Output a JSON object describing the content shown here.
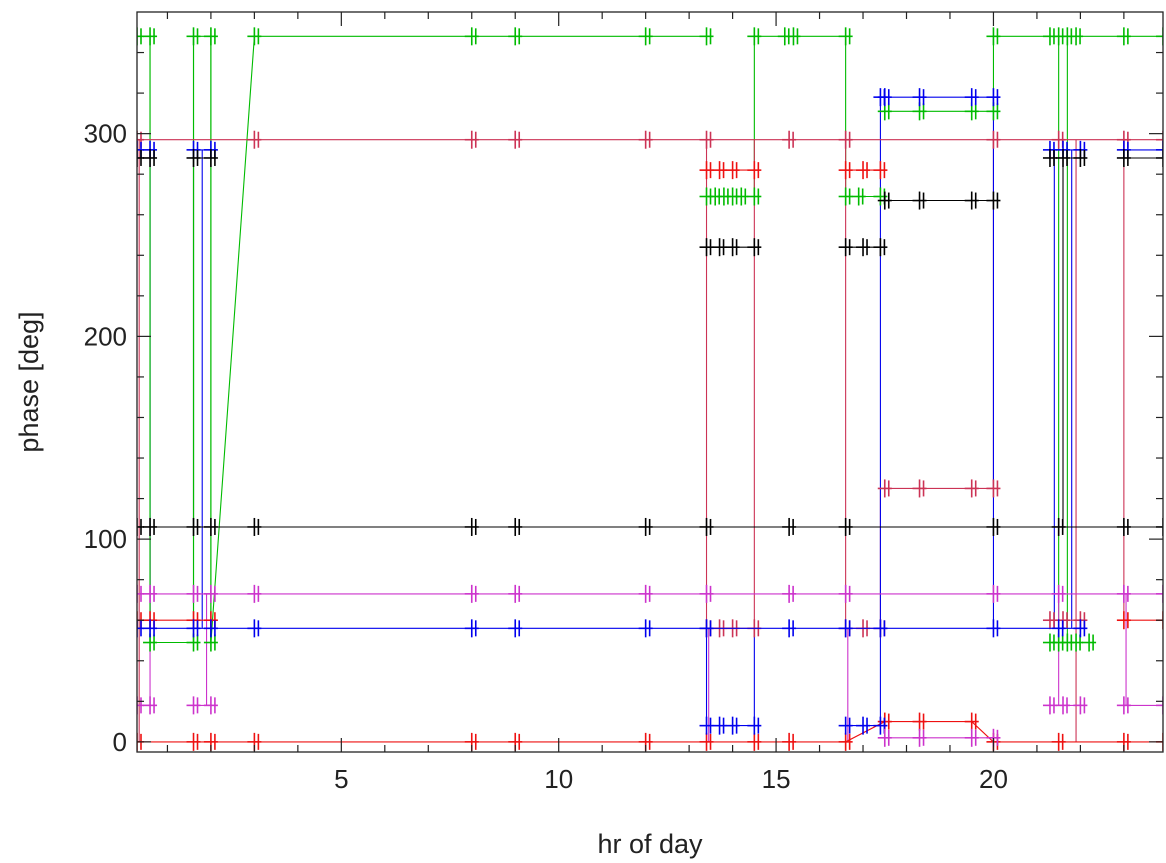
{
  "chart_data": {
    "type": "line",
    "title": "",
    "xlabel": "hr of day",
    "ylabel": "phase [deg]",
    "xlim": [
      0.3,
      23.9
    ],
    "ylim": [
      -5,
      360
    ],
    "xticks": [
      5,
      10,
      15,
      20
    ],
    "yticks": [
      0,
      100,
      200,
      300
    ],
    "xtick_labels": [
      "5",
      "10",
      "15",
      "20"
    ],
    "ytick_labels": [
      "0",
      "100",
      "200",
      "300"
    ],
    "grid": false,
    "legend": "none",
    "series": [
      {
        "color": "#00bb00",
        "segments": [
          {
            "x": [
              0.3,
              0.6,
              0.6,
              1.6,
              1.6,
              2.0,
              2.0,
              3.0,
              8.0,
              9.0,
              12.0,
              13.4
            ],
            "y": [
              348,
              348,
              49,
              49,
              348,
              348,
              49,
              348,
              348,
              348,
              348,
              348
            ]
          },
          {
            "x": [
              13.4,
              13.6,
              13.8,
              14.0,
              14.2,
              14.5
            ],
            "y": [
              269,
              269,
              269,
              269,
              269,
              269
            ]
          },
          {
            "x": [
              14.5,
              15.2,
              15.4,
              16.6
            ],
            "y": [
              348,
              348,
              348,
              348
            ]
          },
          {
            "x": [
              16.6,
              16.9,
              17.4
            ],
            "y": [
              269,
              269,
              269
            ]
          },
          {
            "x": [
              17.5,
              18.3,
              19.5,
              20.0
            ],
            "y": [
              311,
              311,
              311,
              311
            ]
          },
          {
            "x": [
              20.0,
              21.3,
              21.5,
              21.7,
              21.9,
              23.0,
              23.9
            ],
            "y": [
              348,
              348,
              348,
              348,
              348,
              348,
              348
            ]
          },
          {
            "x": [
              21.3,
              21.5,
              21.7,
              21.9,
              22.2
            ],
            "y": [
              49,
              49,
              49,
              49,
              49
            ]
          }
        ]
      },
      {
        "color": "#cc3355",
        "segments": [
          {
            "x": [
              0.3,
              3.0,
              8.0,
              9.0,
              12.0,
              13.4,
              15.3,
              16.6,
              20.0,
              21.5,
              23.0,
              23.9
            ],
            "y": [
              297,
              297,
              297,
              297,
              297,
              297,
              297,
              297,
              297,
              297,
              297,
              297
            ]
          },
          {
            "x": [
              17.5,
              18.3,
              19.5,
              20.0
            ],
            "y": [
              125,
              125,
              125,
              125
            ]
          },
          {
            "x": [
              13.4,
              13.7,
              14.0,
              14.5
            ],
            "y": [
              56,
              56,
              56,
              56
            ]
          },
          {
            "x": [
              16.6,
              17.0,
              17.4
            ],
            "y": [
              56,
              56,
              56
            ]
          },
          {
            "x": [
              21.3,
              21.6,
              22.0
            ],
            "y": [
              60,
              60,
              60
            ]
          }
        ]
      },
      {
        "color": "#ee1111",
        "segments": [
          {
            "x": [
              0.3,
              1.6,
              2.0,
              3.0,
              8.0,
              9.0,
              12.0,
              13.4,
              14.5,
              15.3,
              16.6,
              17.5,
              18.3,
              19.5,
              20.0,
              21.5,
              23.0,
              23.9
            ],
            "y": [
              0,
              0,
              0,
              0,
              0,
              0,
              0,
              0,
              0,
              0,
              0,
              10,
              10,
              10,
              0,
              0,
              0,
              0
            ]
          },
          {
            "x": [
              0.3,
              0.6,
              1.6,
              2.0
            ],
            "y": [
              60,
              60,
              60,
              60
            ]
          },
          {
            "x": [
              13.4,
              13.7,
              14.0,
              14.5
            ],
            "y": [
              282,
              282,
              282,
              282
            ]
          },
          {
            "x": [
              16.6,
              17.0,
              17.4
            ],
            "y": [
              282,
              282,
              282
            ]
          },
          {
            "x": [
              23.0,
              23.9
            ],
            "y": [
              60,
              60
            ]
          }
        ]
      },
      {
        "color": "#0000ee",
        "segments": [
          {
            "x": [
              0.3,
              0.6,
              1.6,
              2.0,
              3.0,
              8.0,
              9.0,
              12.0,
              13.4,
              15.3,
              16.6,
              17.4,
              20.0,
              21.5,
              22.0
            ],
            "y": [
              56,
              56,
              56,
              56,
              56,
              56,
              56,
              56,
              56,
              56,
              56,
              56,
              56,
              56,
              56
            ]
          },
          {
            "x": [
              0.3,
              0.6
            ],
            "y": [
              292,
              292
            ]
          },
          {
            "x": [
              1.6,
              2.0
            ],
            "y": [
              292,
              292
            ]
          },
          {
            "x": [
              13.4,
              13.7,
              14.0,
              14.5
            ],
            "y": [
              8,
              8,
              8,
              8
            ]
          },
          {
            "x": [
              16.6,
              17.0,
              17.4
            ],
            "y": [
              8,
              8,
              8
            ]
          },
          {
            "x": [
              17.4,
              17.5,
              18.3,
              19.5,
              20.0
            ],
            "y": [
              318,
              318,
              318,
              318,
              318
            ]
          },
          {
            "x": [
              21.3,
              21.6,
              22.0
            ],
            "y": [
              292,
              292,
              292
            ]
          },
          {
            "x": [
              23.0,
              23.9
            ],
            "y": [
              292,
              292
            ]
          }
        ]
      },
      {
        "color": "#000000",
        "segments": [
          {
            "x": [
              0.3,
              0.6,
              1.6,
              2.0,
              3.0,
              8.0,
              9.0,
              12.0,
              13.4,
              15.3,
              16.6,
              20.0,
              21.5,
              23.0,
              23.9
            ],
            "y": [
              106,
              106,
              106,
              106,
              106,
              106,
              106,
              106,
              106,
              106,
              106,
              106,
              106,
              106,
              106
            ]
          },
          {
            "x": [
              0.3,
              0.6
            ],
            "y": [
              288,
              288
            ]
          },
          {
            "x": [
              1.6,
              2.0
            ],
            "y": [
              288,
              288
            ]
          },
          {
            "x": [
              13.4,
              13.7,
              14.0,
              14.5
            ],
            "y": [
              244,
              244,
              244,
              244
            ]
          },
          {
            "x": [
              16.6,
              17.0,
              17.4
            ],
            "y": [
              244,
              244,
              244
            ]
          },
          {
            "x": [
              17.5,
              18.3,
              19.5,
              20.0
            ],
            "y": [
              267,
              267,
              267,
              267
            ]
          },
          {
            "x": [
              21.3,
              21.6,
              22.0
            ],
            "y": [
              288,
              288,
              288
            ]
          },
          {
            "x": [
              23.0,
              23.9
            ],
            "y": [
              288,
              288
            ]
          }
        ]
      },
      {
        "color": "#cc33cc",
        "segments": [
          {
            "x": [
              0.3,
              0.6,
              1.6,
              2.0,
              3.0,
              8.0,
              9.0,
              12.0,
              13.4,
              15.3,
              16.6,
              20.0,
              21.5,
              23.0,
              23.9
            ],
            "y": [
              73,
              73,
              73,
              73,
              73,
              73,
              73,
              73,
              73,
              73,
              73,
              73,
              73,
              73,
              73
            ]
          },
          {
            "x": [
              0.3,
              0.6
            ],
            "y": [
              18,
              18
            ]
          },
          {
            "x": [
              1.6,
              2.0
            ],
            "y": [
              18,
              18
            ]
          },
          {
            "x": [
              17.5,
              18.3,
              19.5,
              20.0
            ],
            "y": [
              2,
              2,
              2,
              2
            ]
          },
          {
            "x": [
              21.3,
              21.6,
              22.0
            ],
            "y": [
              18,
              18,
              18
            ]
          },
          {
            "x": [
              23.0,
              23.9
            ],
            "y": [
              18,
              18
            ]
          }
        ]
      }
    ],
    "step_transitions": [
      {
        "color": "#00bb00",
        "x": 0.6,
        "y": [
          49,
          348
        ]
      },
      {
        "color": "#00bb00",
        "x": 1.6,
        "y": [
          49,
          348
        ]
      },
      {
        "color": "#00bb00",
        "x": 2.0,
        "y": [
          49,
          348
        ]
      },
      {
        "color": "#00bb00",
        "x": 14.5,
        "y": [
          269,
          348
        ]
      },
      {
        "color": "#00bb00",
        "x": 16.6,
        "y": [
          269,
          348
        ]
      },
      {
        "color": "#00bb00",
        "x": 20.0,
        "y": [
          311,
          348
        ]
      },
      {
        "color": "#00bb00",
        "x": 21.5,
        "y": [
          49,
          348
        ]
      },
      {
        "color": "#00bb00",
        "x": 21.7,
        "y": [
          49,
          348
        ]
      },
      {
        "color": "#cc3355",
        "x": 13.4,
        "y": [
          56,
          297
        ]
      },
      {
        "color": "#cc3355",
        "x": 14.5,
        "y": [
          56,
          297
        ]
      },
      {
        "color": "#cc3355",
        "x": 16.6,
        "y": [
          56,
          297
        ]
      },
      {
        "color": "#cc3355",
        "x": 17.4,
        "y": [
          56,
          125
        ]
      },
      {
        "color": "#cc3355",
        "x": 20.0,
        "y": [
          125,
          297
        ]
      },
      {
        "color": "#cc3355",
        "x": 23.0,
        "y": [
          60,
          297
        ]
      },
      {
        "color": "#0000ee",
        "x": 0.6,
        "y": [
          56,
          292
        ]
      },
      {
        "color": "#0000ee",
        "x": 1.8,
        "y": [
          56,
          292
        ]
      },
      {
        "color": "#0000ee",
        "x": 13.4,
        "y": [
          8,
          56
        ]
      },
      {
        "color": "#0000ee",
        "x": 14.5,
        "y": [
          8,
          56
        ]
      },
      {
        "color": "#0000ee",
        "x": 17.4,
        "y": [
          8,
          318
        ]
      },
      {
        "color": "#0000ee",
        "x": 20.0,
        "y": [
          56,
          318
        ]
      },
      {
        "color": "#0000ee",
        "x": 21.4,
        "y": [
          56,
          292
        ]
      },
      {
        "color": "#0000ee",
        "x": 21.8,
        "y": [
          56,
          292
        ]
      },
      {
        "color": "#cc33cc",
        "x": 0.6,
        "y": [
          18,
          106
        ]
      },
      {
        "color": "#cc33cc",
        "x": 1.9,
        "y": [
          18,
          73
        ]
      },
      {
        "color": "#cc33cc",
        "x": 13.45,
        "y": [
          0,
          56
        ]
      },
      {
        "color": "#cc33cc",
        "x": 16.65,
        "y": [
          0,
          56
        ]
      },
      {
        "color": "#cc33cc",
        "x": 21.5,
        "y": [
          18,
          73
        ]
      },
      {
        "color": "#cc33cc",
        "x": 23.05,
        "y": [
          18,
          73
        ]
      },
      {
        "color": "#000000",
        "x": 1.6,
        "y": [
          106,
          288
        ]
      },
      {
        "color": "#000000",
        "x": 21.6,
        "y": [
          106,
          288
        ]
      },
      {
        "color": "#cc3355",
        "x": 21.9,
        "y": [
          0,
          297
        ]
      },
      {
        "color": "#cc3355",
        "x": 0.35,
        "y": [
          0,
          297
        ]
      }
    ]
  }
}
